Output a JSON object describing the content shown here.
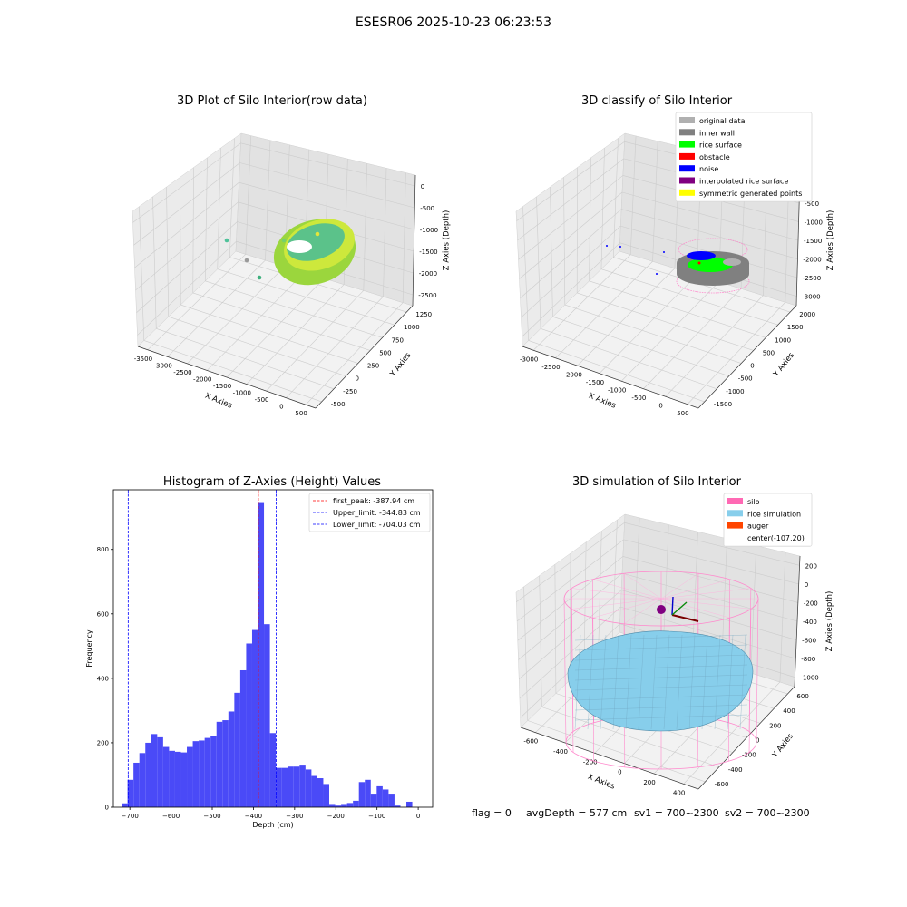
{
  "figure_title": "ESESR06 2025-10-23 06:23:53",
  "status_line": {
    "flag": "flag = 0",
    "avg_depth": "avgDepth = 577 cm",
    "sv1": "sv1 = 700~2300",
    "sv2": "sv2 = 700~2300"
  },
  "colors": {
    "hist_bar": "#4a4af7",
    "peak_line": "#ff0000",
    "limit_line": "#0000ff",
    "silo": "#ff69b4",
    "rice_simulation": "#87ceeb",
    "auger": "#ff4500",
    "rice_surface": "#00ff00",
    "inner_wall": "#808080",
    "original_data": "#b0b0b0",
    "obstacle": "#ff0000",
    "noise": "#0000ff",
    "interpolated_rice_surface": "#800080",
    "symmetric_generated_points": "#ffff00"
  },
  "chart_data": [
    {
      "type": "scatter",
      "subtype": "3d-scatter",
      "title": "3D Plot of Silo Interior(row data)",
      "xlabel": "X Axies",
      "ylabel": "Y Axies",
      "zlabel": "Z Axies (Depth)",
      "x_ticks": [
        "-3500",
        "-3000",
        "-2500",
        "-2000",
        "-1500",
        "-1000",
        "-500",
        "0",
        "500"
      ],
      "y_ticks": [
        "-500",
        "-250",
        "0",
        "250",
        "500",
        "750",
        "1000",
        "1250"
      ],
      "z_ticks": [
        "0",
        "-500",
        "-1000",
        "-1500",
        "-2000",
        "-2500"
      ],
      "xlim": [
        -3600,
        600
      ],
      "ylim": [
        -600,
        1400
      ],
      "zlim": [
        -2700,
        100
      ],
      "grid": true
    },
    {
      "type": "scatter",
      "subtype": "3d-scatter",
      "title": "3D classify of Silo Interior",
      "xlabel": "X Axies",
      "ylabel": "Y Axies",
      "zlabel": "Z Axies (Depth)",
      "x_ticks": [
        "-3000",
        "-2500",
        "-2000",
        "-1500",
        "-1000",
        "-500",
        "0",
        "500"
      ],
      "y_ticks": [
        "-1500",
        "-1000",
        "-500",
        "0",
        "500",
        "1000",
        "1500",
        "2000"
      ],
      "z_ticks": [
        "0",
        "-500",
        "-1000",
        "-1500",
        "-2000",
        "-2500",
        "-3000"
      ],
      "z_tick_partial": "0",
      "legend": [
        {
          "name": "original data",
          "color": "#b0b0b0"
        },
        {
          "name": "inner wall",
          "color": "#808080"
        },
        {
          "name": "rice surface",
          "color": "#00ff00"
        },
        {
          "name": "obstacle",
          "color": "#ff0000"
        },
        {
          "name": "noise",
          "color": "#0000ff"
        },
        {
          "name": "interpolated rice surface",
          "color": "#800080"
        },
        {
          "name": "symmetric generated points",
          "color": "#ffff00"
        }
      ],
      "legend_position": "top-right",
      "grid": true
    },
    {
      "type": "bar",
      "subtype": "histogram",
      "title": "Histogram of Z-Axies (Height) Values",
      "xlabel": "Depth (cm)",
      "ylabel": "Frequency",
      "xlim": [
        -740,
        35
      ],
      "ylim": [
        0,
        985
      ],
      "x_ticks": [
        -700,
        -600,
        -500,
        -400,
        -300,
        -200,
        -100,
        0
      ],
      "y_ticks": [
        0,
        200,
        400,
        600,
        800
      ],
      "bin_start": -720,
      "bin_width": 14.4,
      "values": [
        12,
        85,
        138,
        168,
        200,
        227,
        217,
        187,
        175,
        172,
        170,
        187,
        205,
        207,
        215,
        221,
        265,
        270,
        297,
        355,
        425,
        508,
        550,
        944,
        568,
        230,
        122,
        122,
        126,
        126,
        132,
        117,
        97,
        90,
        72,
        10,
        5,
        10,
        13,
        20,
        78,
        85,
        42,
        65,
        55,
        42,
        5,
        0,
        17
      ],
      "vlines": [
        {
          "name": "first_peak: -387.94 cm",
          "x": -387.94,
          "color": "#ff0000"
        },
        {
          "name": "Upper_limit: -344.83 cm",
          "x": -344.83,
          "color": "#0000ff"
        },
        {
          "name": "Lower_limit: -704.03 cm",
          "x": -704.03,
          "color": "#0000ff"
        }
      ],
      "legend_position": "top-right"
    },
    {
      "type": "area",
      "subtype": "3d-surface",
      "title": "3D simulation of Silo Interior",
      "xlabel": "X Axies",
      "ylabel": "Y Axies",
      "zlabel": "Z Axies (Depth)",
      "x_ticks": [
        "-600",
        "-400",
        "-200",
        "0",
        "200",
        "400"
      ],
      "y_ticks": [
        "-600",
        "-400",
        "-200",
        "0",
        "200",
        "400",
        "600"
      ],
      "z_ticks": [
        "200",
        "0",
        "-200",
        "-400",
        "-600",
        "-800",
        "-1000"
      ],
      "legend": [
        {
          "name": "silo",
          "color": "#ff69b4"
        },
        {
          "name": "rice simulation",
          "color": "#87ceeb"
        },
        {
          "name": "auger",
          "color": "#ff4500"
        },
        {
          "name": "center(-107,20)",
          "color": ""
        }
      ],
      "legend_position": "top-right",
      "grid": true
    }
  ]
}
